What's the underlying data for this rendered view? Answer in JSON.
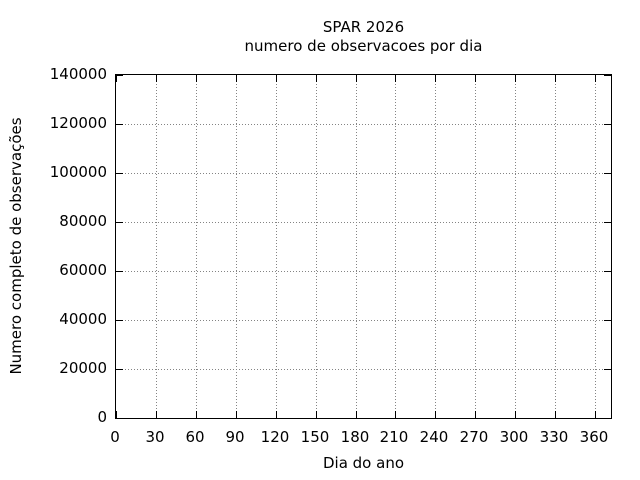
{
  "chart_data": {
    "type": "line",
    "title": "SPAR 2026",
    "subtitle": "numero de observacoes por dia",
    "xlabel": "Dia do ano",
    "ylabel": "Numero completo de observações",
    "xlim": [
      0,
      372
    ],
    "ylim": [
      0,
      140000
    ],
    "xticks": [
      0,
      30,
      60,
      90,
      120,
      150,
      180,
      210,
      240,
      270,
      300,
      330,
      360
    ],
    "yticks": [
      0,
      20000,
      40000,
      60000,
      80000,
      100000,
      120000,
      140000
    ],
    "grid": true,
    "grid_style": "dotted",
    "legend": "none",
    "series": []
  },
  "colors": {
    "background": "#ffffff",
    "axis_border": "#000000",
    "grid": "#848484",
    "text": "#000000"
  }
}
